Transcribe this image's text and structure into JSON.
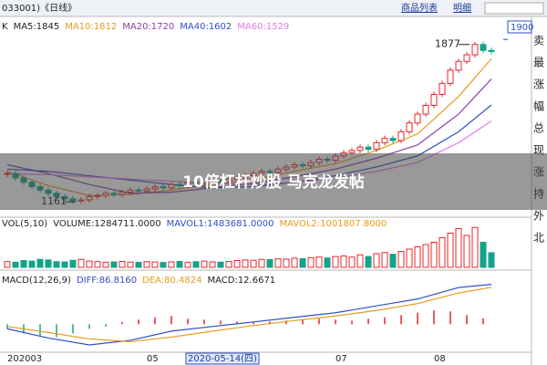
{
  "header": {
    "code": "033001)《日线》",
    "menu": [
      "商品列表",
      "明细"
    ]
  },
  "side_panel": [
    "卖",
    "最",
    "涨",
    "幅",
    "总",
    "现",
    "涨",
    "持",
    "外",
    "北"
  ],
  "banner": "10倍杠杆炒股 马克龙发帖",
  "x_axis": {
    "labels": [
      {
        "index": 0,
        "label": "202003"
      },
      {
        "index": 17,
        "label": "05"
      },
      {
        "index": 22,
        "label": "2020-05-14(四)"
      },
      {
        "index": 40,
        "label": "07"
      },
      {
        "index": 52,
        "label": "08"
      }
    ]
  },
  "chart_data": [
    {
      "type": "candlestick",
      "title": "K",
      "legend": [
        {
          "label": "MA5:1845",
          "color": "#222222"
        },
        {
          "label": "MA10:1812",
          "color": "#e69a1e"
        },
        {
          "label": "MA20:1720",
          "color": "#8a3fa8"
        },
        {
          "label": "MA40:1602",
          "color": "#2f4fc4"
        },
        {
          "label": "MA60:1529",
          "color": "#e47ae4"
        }
      ],
      "values": [
        1290,
        1270,
        1250,
        1230,
        1215,
        1200,
        1185,
        1175,
        1165,
        1170,
        1185,
        1190,
        1200,
        1195,
        1205,
        1215,
        1210,
        1220,
        1230,
        1225,
        1240,
        1235,
        1250,
        1245,
        1255,
        1260,
        1250,
        1265,
        1270,
        1280,
        1290,
        1300,
        1295,
        1310,
        1320,
        1330,
        1325,
        1340,
        1355,
        1350,
        1370,
        1385,
        1395,
        1410,
        1400,
        1430,
        1450,
        1440,
        1480,
        1520,
        1560,
        1600,
        1650,
        1700,
        1760,
        1800,
        1830,
        1877,
        1850,
        1845
      ],
      "up_color": "#e8262b",
      "down_color": "#14a38a",
      "series": [
        {
          "color": "#e69a1e",
          "x": [
            0,
            5,
            10,
            15,
            20,
            25,
            30,
            35,
            40,
            45,
            50,
            55,
            59
          ],
          "values": [
            1300,
            1235,
            1190,
            1195,
            1215,
            1240,
            1262,
            1300,
            1335,
            1395,
            1470,
            1640,
            1812
          ]
        },
        {
          "color": "#8a3fa8",
          "x": [
            0,
            5,
            10,
            15,
            20,
            25,
            30,
            35,
            40,
            45,
            50,
            55,
            59
          ],
          "values": [
            1330,
            1290,
            1240,
            1200,
            1205,
            1225,
            1245,
            1275,
            1310,
            1360,
            1420,
            1560,
            1720
          ]
        },
        {
          "color": "#2f4fc4",
          "x": [
            0,
            5,
            10,
            15,
            20,
            25,
            30,
            35,
            40,
            45,
            50,
            55,
            59
          ],
          "values": [
            1310,
            1300,
            1280,
            1260,
            1240,
            1225,
            1230,
            1250,
            1280,
            1320,
            1370,
            1480,
            1602
          ]
        },
        {
          "color": "#e47ae4",
          "x": [
            0,
            5,
            10,
            15,
            20,
            25,
            30,
            35,
            40,
            45,
            50,
            55,
            59
          ],
          "values": [
            1290,
            1285,
            1275,
            1265,
            1255,
            1245,
            1240,
            1250,
            1270,
            1300,
            1340,
            1430,
            1529
          ]
        }
      ],
      "annotations": [
        {
          "value": 1877,
          "index": 57
        },
        {
          "value": 1161,
          "index": 9
        }
      ],
      "ylim": [
        1108,
        1905
      ],
      "yticks": [
        1900
      ]
    },
    {
      "type": "volume",
      "title": "VOL(5,10)",
      "legend": [
        {
          "label": "VOLUME:1284711.0000",
          "color": "#222222"
        },
        {
          "label": "MAVOL1:1483681.0000",
          "color": "#2f4fc4"
        },
        {
          "label": "MAVOL2:1001807.8000",
          "color": "#e69a1e"
        }
      ],
      "values": [
        500000,
        450000,
        600000,
        550000,
        700000,
        650000,
        500000,
        480000,
        620000,
        700000,
        550000,
        500000,
        450000,
        480000,
        520000,
        460000,
        440000,
        500000,
        470000,
        430000,
        480000,
        520000,
        450000,
        500000,
        550000,
        480000,
        460000,
        520000,
        600000,
        650000,
        620000,
        700000,
        680000,
        750000,
        720000,
        800000,
        760000,
        850000,
        900000,
        820000,
        950000,
        1000000,
        900000,
        1100000,
        950000,
        1200000,
        1300000,
        1150000,
        1400000,
        1600000,
        1800000,
        2000000,
        2200000,
        2600000,
        3000000,
        3400000,
        2800000,
        3500000,
        2200000,
        1284711
      ],
      "ylim": [
        0,
        3600000
      ]
    },
    {
      "type": "macd",
      "title": "MACD(12,26,9)",
      "legend": [
        {
          "label": "DIFF:86.8160",
          "color": "#2f4fc4"
        },
        {
          "label": "DEA:80.4824",
          "color": "#e69a1e"
        },
        {
          "label": "MACD:12.6671",
          "color": "#222222"
        }
      ],
      "series": [
        {
          "color": "#2f4fc4",
          "x": [
            0,
            5,
            10,
            15,
            20,
            25,
            30,
            35,
            40,
            45,
            50,
            55,
            59
          ],
          "values": [
            -10,
            -30,
            -45,
            -35,
            -15,
            -5,
            5,
            15,
            25,
            40,
            55,
            80,
            86.816
          ]
        },
        {
          "color": "#e69a1e",
          "x": [
            0,
            5,
            10,
            15,
            20,
            25,
            30,
            35,
            40,
            45,
            50,
            55,
            59
          ],
          "values": [
            -5,
            -18,
            -32,
            -38,
            -28,
            -15,
            -3,
            8,
            18,
            30,
            45,
            68,
            80.4824
          ]
        }
      ],
      "bars": {
        "x": [
          0,
          2,
          4,
          6,
          8,
          10,
          12,
          14,
          16,
          18,
          20,
          22,
          24,
          26,
          28,
          30,
          32,
          34,
          36,
          38,
          40,
          42,
          44,
          46,
          48,
          50,
          52,
          54,
          56,
          58
        ],
        "values": [
          -10,
          -20,
          -25,
          -28,
          -20,
          -10,
          -5,
          5,
          10,
          15,
          18,
          12,
          10,
          8,
          6,
          4,
          6,
          8,
          10,
          12,
          10,
          8,
          12,
          15,
          20,
          25,
          30,
          28,
          20,
          12.6671
        ]
      },
      "ylim": [
        -55,
        100
      ]
    }
  ]
}
